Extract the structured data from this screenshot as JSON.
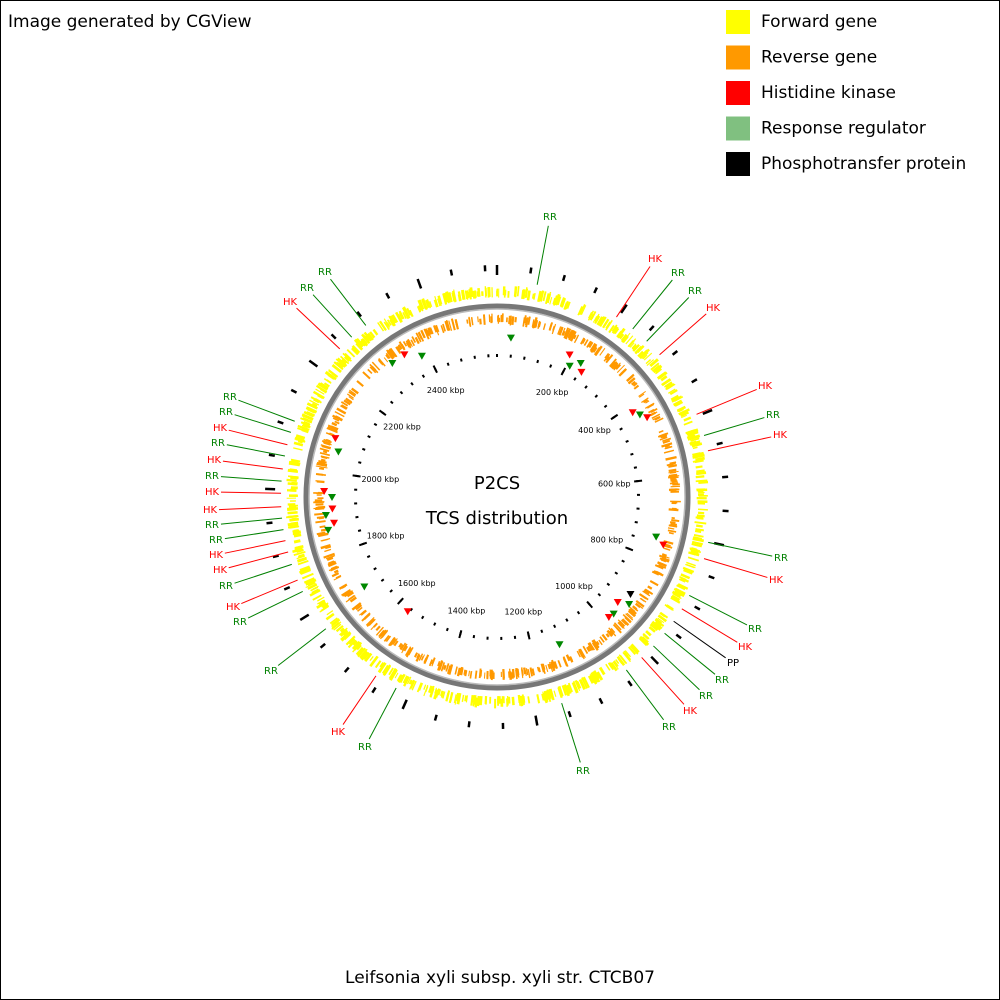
{
  "header": {
    "credit": "Image generated by CGView"
  },
  "legend": [
    {
      "label": "Forward gene",
      "color": "#ffff00"
    },
    {
      "label": "Reverse gene",
      "color": "#ff9900"
    },
    {
      "label": "Histidine kinase",
      "color": "#ff0000"
    },
    {
      "label": "Response regulator",
      "color": "#80c080"
    },
    {
      "label": "Phosphotransfer protein",
      "color": "#000000"
    }
  ],
  "center": {
    "title": "P2CS",
    "subtitle": "TCS distribution"
  },
  "axis": {
    "labels": [
      "200 kbp",
      "400 kbp",
      "600 kbp",
      "800 kbp",
      "1000 kbp",
      "1200 kbp",
      "1400 kbp",
      "1600 kbp",
      "1800 kbp",
      "2000 kbp",
      "2200 kbp",
      "2400 kbp"
    ]
  },
  "features": [
    {
      "label": "RR",
      "color": "#008000"
    },
    {
      "label": "HK",
      "color": "#ff0000"
    },
    {
      "label": "RR",
      "color": "#008000"
    },
    {
      "label": "RR",
      "color": "#008000"
    },
    {
      "label": "HK",
      "color": "#ff0000"
    },
    {
      "label": "HK",
      "color": "#ff0000"
    },
    {
      "label": "RR",
      "color": "#008000"
    },
    {
      "label": "HK",
      "color": "#ff0000"
    },
    {
      "label": "RR",
      "color": "#008000"
    },
    {
      "label": "HK",
      "color": "#ff0000"
    },
    {
      "label": "RR",
      "color": "#008000"
    },
    {
      "label": "HK",
      "color": "#ff0000"
    },
    {
      "label": "PP",
      "color": "#000000"
    },
    {
      "label": "RR",
      "color": "#008000"
    },
    {
      "label": "RR",
      "color": "#008000"
    },
    {
      "label": "HK",
      "color": "#ff0000"
    },
    {
      "label": "RR",
      "color": "#008000"
    },
    {
      "label": "RR",
      "color": "#008000"
    },
    {
      "label": "HK",
      "color": "#ff0000"
    },
    {
      "label": "RR",
      "color": "#008000"
    },
    {
      "label": "RR",
      "color": "#008000"
    },
    {
      "label": "RR",
      "color": "#008000"
    },
    {
      "label": "RR",
      "color": "#008000"
    },
    {
      "label": "HK",
      "color": "#ff0000"
    },
    {
      "label": "RR",
      "color": "#008000"
    },
    {
      "label": "HK",
      "color": "#ff0000"
    },
    {
      "label": "RR",
      "color": "#008000"
    },
    {
      "label": "HK",
      "color": "#ff0000"
    },
    {
      "label": "HK",
      "color": "#ff0000"
    },
    {
      "label": "RR",
      "color": "#008000"
    },
    {
      "label": "RR",
      "color": "#008000"
    },
    {
      "label": "HK",
      "color": "#ff0000"
    },
    {
      "label": "HK",
      "color": "#ff0000"
    },
    {
      "label": "RR",
      "color": "#008000"
    },
    {
      "label": "HK",
      "color": "#ff0000"
    },
    {
      "label": "RR",
      "color": "#008000"
    },
    {
      "label": "RR",
      "color": "#008000"
    },
    {
      "label": "RR",
      "color": "#008000"
    },
    {
      "label": "HK",
      "color": "#ff0000"
    }
  ],
  "footer": {
    "organism": "Leifsonia xyli subsp. xyli str. CTCB07"
  }
}
